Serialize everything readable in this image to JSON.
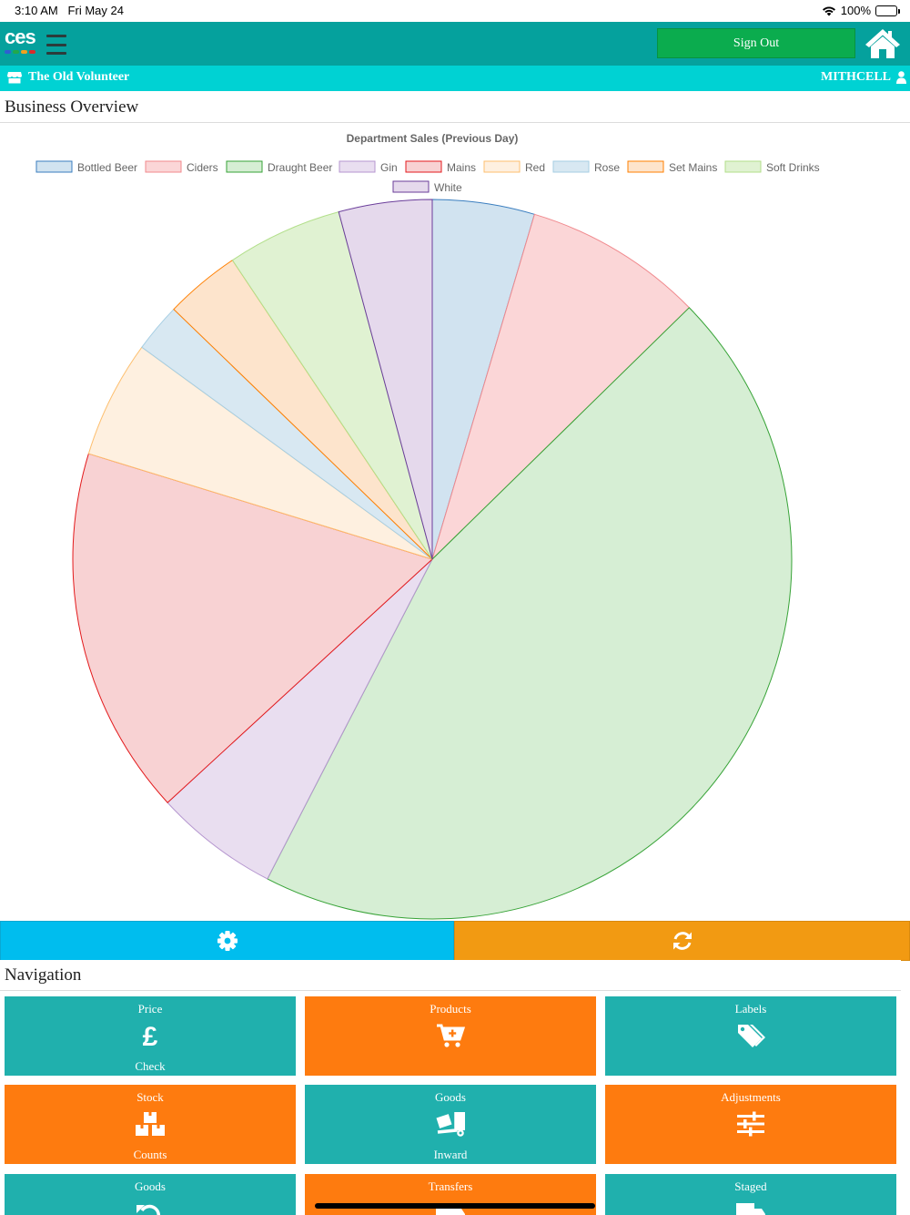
{
  "status": {
    "time": "3:10 AM",
    "date": "Fri May 24",
    "battery": "100%"
  },
  "header": {
    "sign_out_label": "Sign Out",
    "logo_text": "ces"
  },
  "site": {
    "name": "The Old Volunteer",
    "user": "MITHCELL"
  },
  "sections": {
    "overview": "Business Overview",
    "navigation": "Navigation"
  },
  "chart_data": {
    "type": "pie",
    "title": "Department Sales (Previous Day)",
    "legend_position": "top",
    "categories": [
      "Bottled Beer",
      "Ciders",
      "Draught Beer",
      "Gin",
      "Mains",
      "Red",
      "Rose",
      "Set Mains",
      "Soft Drinks",
      "White"
    ],
    "values": [
      4.6,
      8.1,
      45.0,
      5.6,
      16.6,
      5.3,
      2.2,
      3.4,
      5.2,
      4.2
    ],
    "fill_colors": [
      "#d1e3f0",
      "#fbd6d7",
      "#d6eed4",
      "#e9def0",
      "#f8d2d3",
      "#fef0e0",
      "#d8e8f2",
      "#fde4cc",
      "#e0f2d2",
      "#e5d9ec"
    ],
    "stroke_colors": [
      "#3a7ebf",
      "#f08a8e",
      "#37a337",
      "#b596cf",
      "#e31a1c",
      "#fdbf6f",
      "#a6cee3",
      "#ff7f00",
      "#b2df8a",
      "#6a3d9a"
    ],
    "order_note": ""
  },
  "actions": {
    "settings": "gear-icon",
    "refresh": "refresh-icon"
  },
  "nav": [
    {
      "top": "Price",
      "bottom": "Check",
      "color": "teal",
      "icon": "pound-icon"
    },
    {
      "top": "Products",
      "bottom": "",
      "color": "orange",
      "icon": "cart-plus-icon"
    },
    {
      "top": "Labels",
      "bottom": "",
      "color": "teal",
      "icon": "tags-icon"
    },
    {
      "top": "Stock",
      "bottom": "Counts",
      "color": "orange",
      "icon": "boxes-icon"
    },
    {
      "top": "Goods",
      "bottom": "Inward",
      "color": "teal",
      "icon": "dolly-icon"
    },
    {
      "top": "Adjustments",
      "bottom": "",
      "color": "orange",
      "icon": "sliders-icon"
    },
    {
      "top": "Goods",
      "bottom": "",
      "color": "teal",
      "icon": "undo-icon"
    },
    {
      "top": "Transfers",
      "bottom": "",
      "color": "orange",
      "icon": "truck-icon"
    },
    {
      "top": "Staged",
      "bottom": "",
      "color": "teal",
      "icon": "truck-icon"
    }
  ]
}
